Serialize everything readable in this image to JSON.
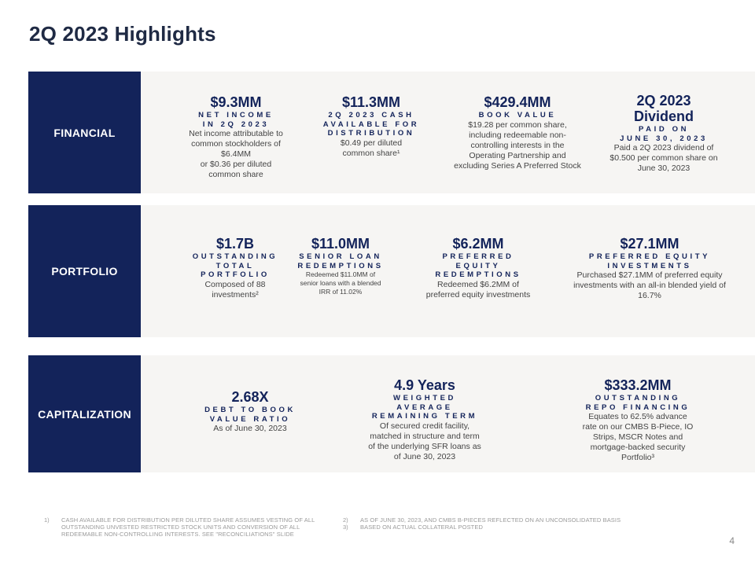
{
  "title": "2Q 2023 Highlights",
  "financial": {
    "label": "FINANCIAL",
    "net_income": {
      "value": "$9.3MM",
      "caption": "NET INCOME\nIN 2Q 2023",
      "desc": "Net income attributable to\ncommon stockholders of\n$6.4MM\nor $0.36 per diluted\ncommon share"
    },
    "cash_available": {
      "value": "$11.3MM",
      "caption": "2Q 2023 CASH\nAVAILABLE FOR\nDISTRIBUTION",
      "desc": "$0.49 per diluted\ncommon share¹"
    },
    "book_value": {
      "value": "$429.4MM",
      "caption": "BOOK VALUE",
      "desc": "$19.28 per common share,\nincluding redeemable non-\ncontrolling interests in the\nOperating Partnership and\nexcluding Series A Preferred Stock"
    },
    "dividend": {
      "value": "2Q 2023\nDividend",
      "caption": "PAID ON\nJUNE 30, 2023",
      "desc": "Paid a 2Q 2023 dividend of\n$0.500 per common share on\nJune 30, 2023"
    }
  },
  "portfolio": {
    "label": "PORTFOLIO",
    "outstanding": {
      "value": "$1.7B",
      "caption": "OUTSTANDING\nTOTAL\nPORTFOLIO",
      "desc": "Composed of 88\ninvestments²"
    },
    "senior_loan": {
      "value": "$11.0MM",
      "caption": "SENIOR LOAN\nREDEMPTIONS",
      "desc": "Redeemed $11.0MM of\nsenior loans with a blended\nIRR of 11.02%"
    },
    "preferred_redemptions": {
      "value": "$6.2MM",
      "caption": "PREFERRED\nEQUITY\nREDEMPTIONS",
      "desc": "Redeemed $6.2MM of\npreferred equity investments"
    },
    "preferred_investments": {
      "value": "$27.1MM",
      "caption": "PREFERRED EQUITY\nINVESTMENTS",
      "desc": "Purchased $27.1MM of preferred equity\ninvestments with an all-in blended yield of\n16.7%"
    }
  },
  "capitalization": {
    "label": "CAPITALIZATION",
    "debt_ratio": {
      "value": "2.68X",
      "caption": "DEBT TO BOOK\nVALUE RATIO",
      "desc": "As of June 30, 2023"
    },
    "wart": {
      "value": "4.9 Years",
      "caption": "WEIGHTED\nAVERAGE\nREMAINING TERM",
      "desc": "Of secured credit facility,\nmatched in structure and term\nof the underlying SFR loans as\nof June 30, 2023"
    },
    "repo": {
      "value": "$333.2MM",
      "caption": "OUTSTANDING\nREPO FINANCING",
      "desc": "Equates to 62.5% advance\nrate on our CMBS B-Piece, IO\nStrips, MSCR Notes and\nmortgage-backed security\nPortfolio³"
    }
  },
  "footnotes": {
    "left": [
      {
        "num": "1)",
        "text": "Cash available for distribution per diluted share assumes vesting of all outstanding unvested restricted stock units and conversion of all redeemable non-controlling interests. See \"Reconciliations\" slide"
      }
    ],
    "right": [
      {
        "num": "2)",
        "text": "As of June 30, 2023, and CMBS B-Pieces reflected on an unconsolidated basis"
      },
      {
        "num": "3)",
        "text": "Based on actual collateral posted"
      }
    ]
  },
  "page_number": "4"
}
